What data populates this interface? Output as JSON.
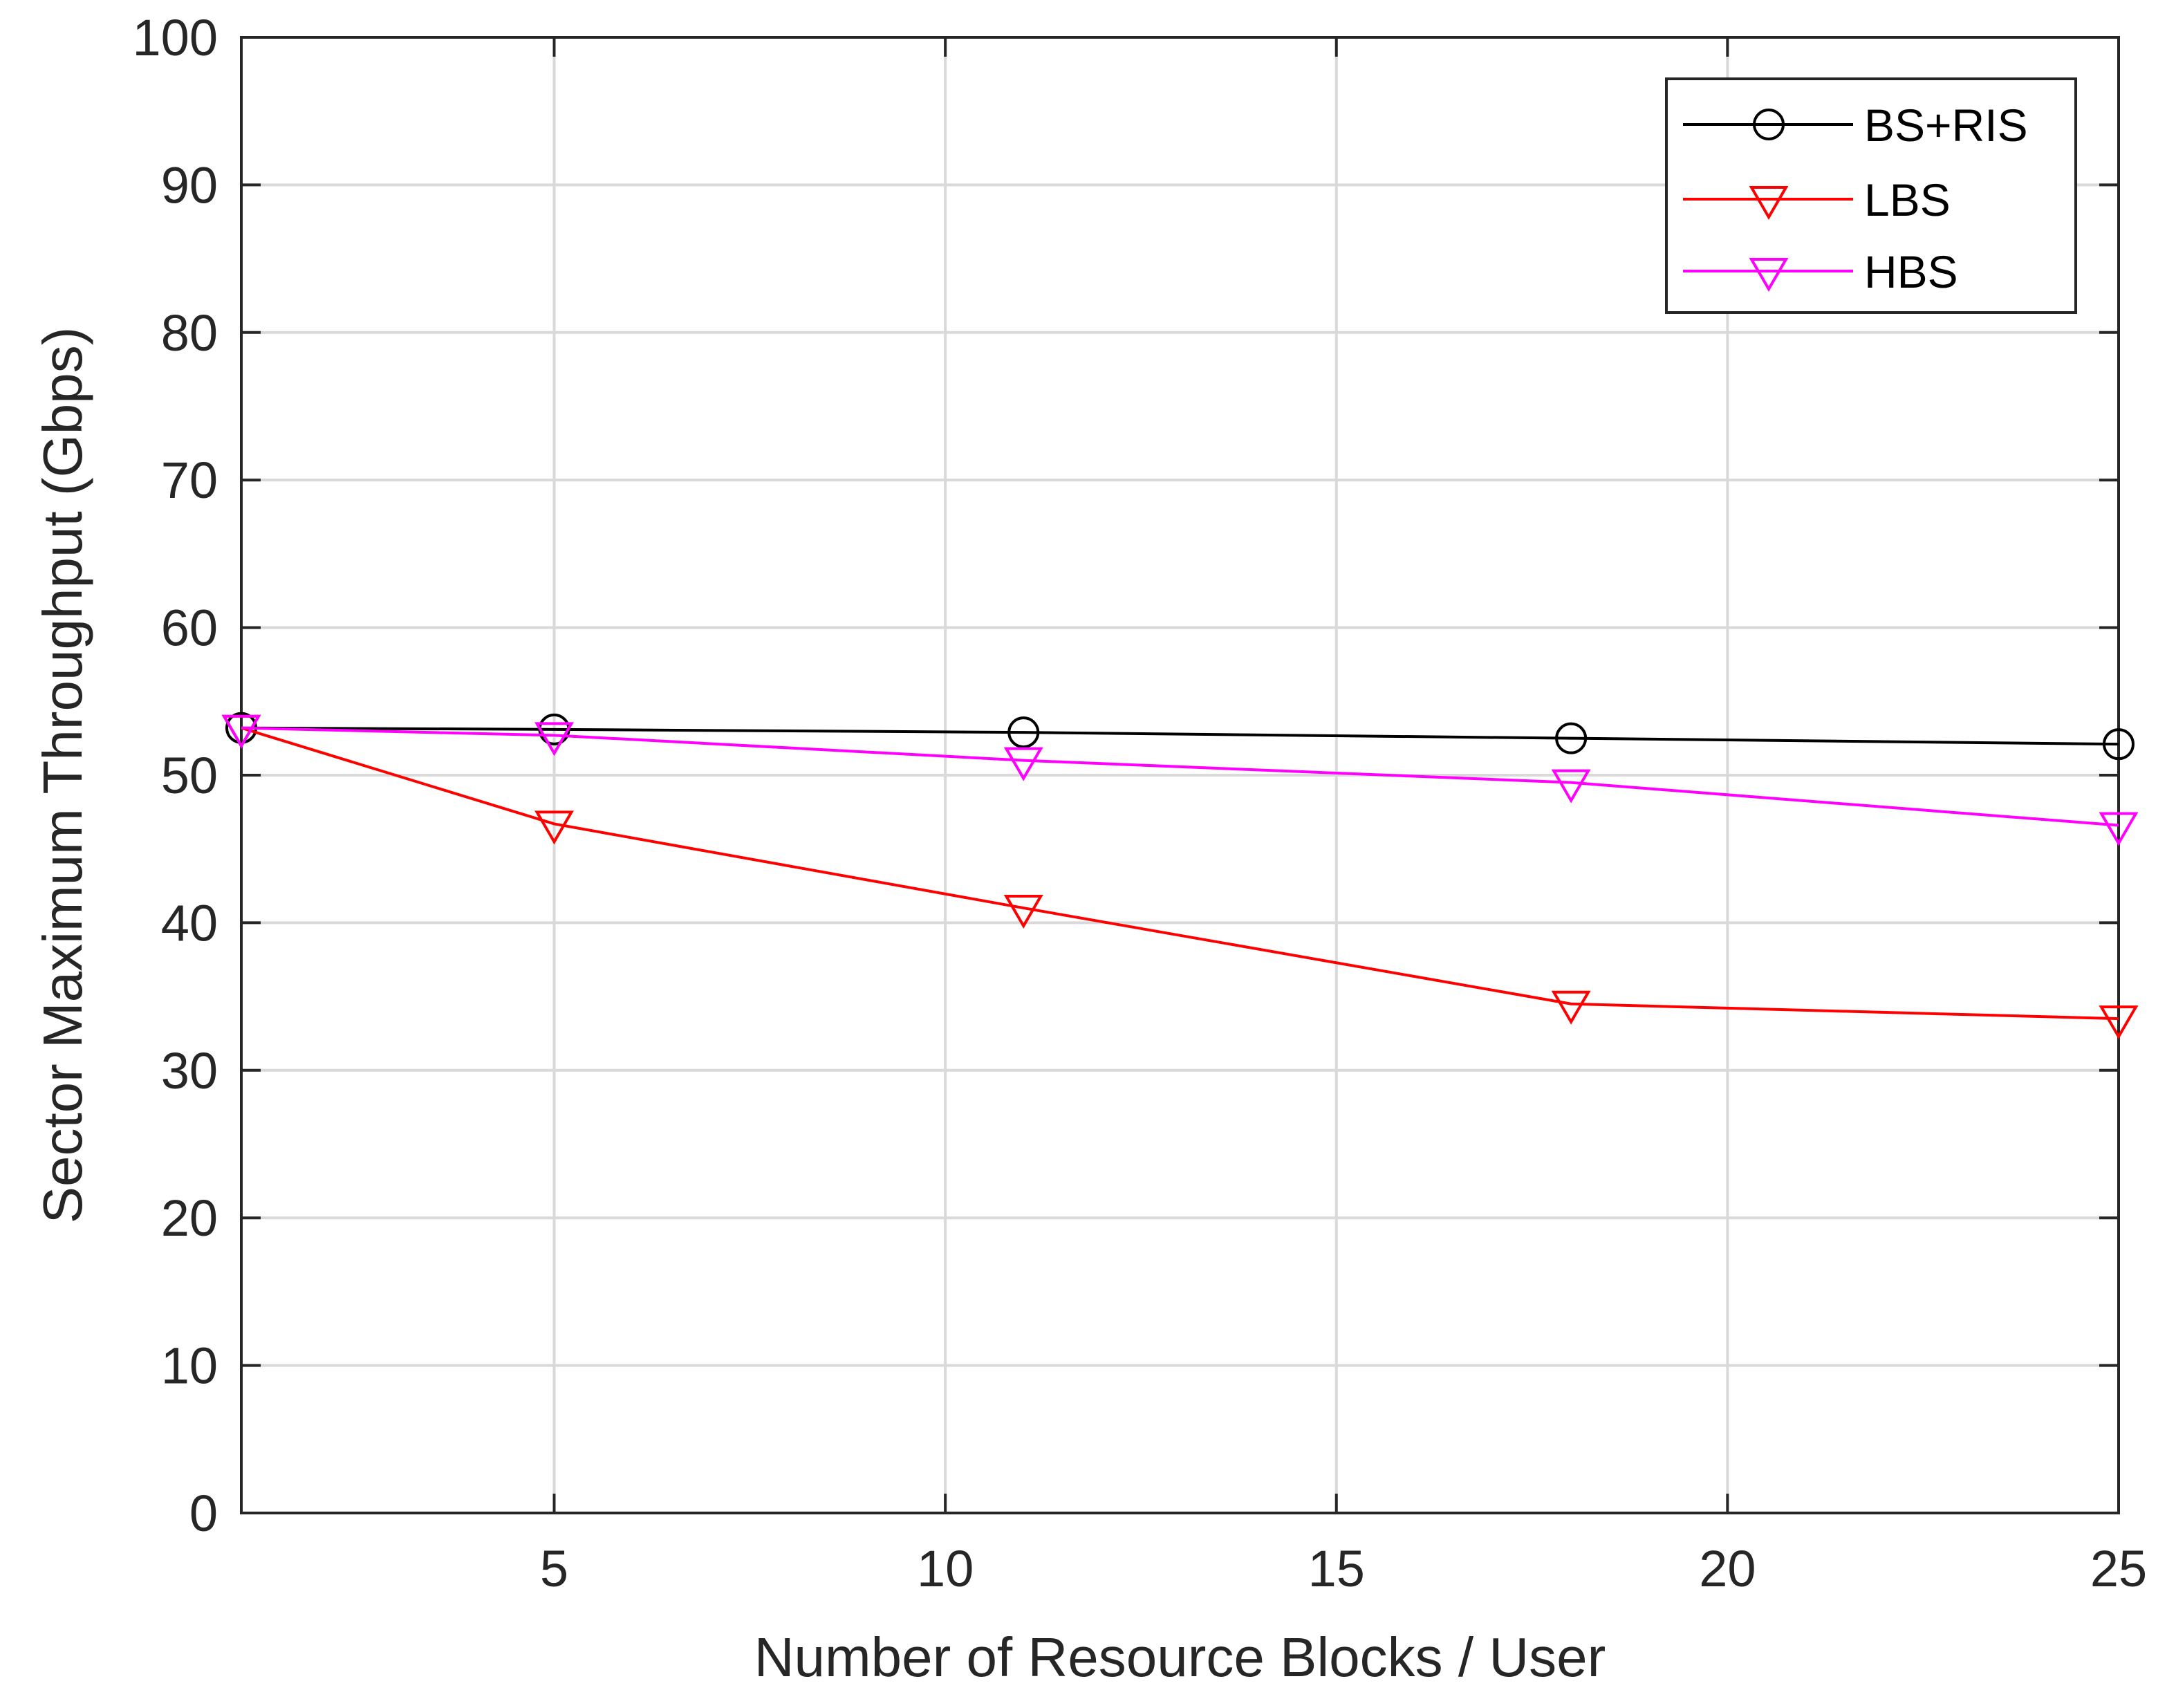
{
  "chart_data": {
    "type": "line",
    "title": "",
    "xlabel": "Number of Resource Blocks / User",
    "ylabel": "Sector Maximum Throughput (Gbps)",
    "xlim": [
      1,
      25
    ],
    "ylim": [
      0,
      100
    ],
    "xticks": [
      5,
      10,
      15,
      20,
      25
    ],
    "yticks": [
      0,
      10,
      20,
      30,
      40,
      50,
      60,
      70,
      80,
      90,
      100
    ],
    "grid": true,
    "legend_position": "top-right",
    "x": [
      1,
      5,
      11,
      18,
      25
    ],
    "series": [
      {
        "name": "BS+RIS",
        "color": "#000000",
        "marker": "circle",
        "values": [
          53.2,
          53.1,
          52.9,
          52.5,
          52.1
        ]
      },
      {
        "name": "LBS",
        "color": "#ff0000",
        "marker": "triangle-down",
        "values": [
          53.2,
          46.7,
          41.0,
          34.5,
          33.5
        ]
      },
      {
        "name": "HBS",
        "color": "#ff00ff",
        "marker": "triangle-down",
        "values": [
          53.2,
          52.7,
          51.0,
          49.5,
          46.6
        ]
      }
    ]
  }
}
